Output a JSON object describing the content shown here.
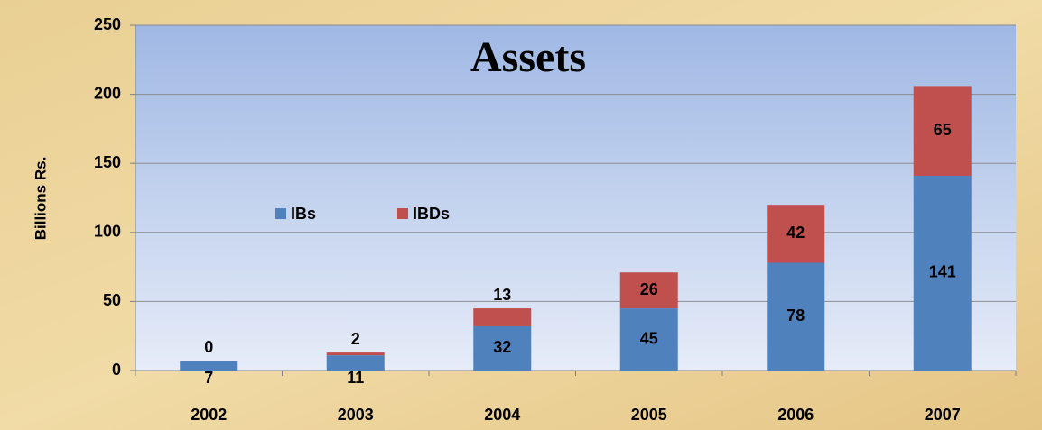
{
  "chart_data": {
    "type": "bar",
    "stacked": true,
    "title": "Assets",
    "y_label": "Billions Rs.",
    "categories": [
      "2002",
      "2003",
      "2004",
      "2005",
      "2006",
      "2007"
    ],
    "series": [
      {
        "name": "IBs",
        "color": "#4f81bd",
        "values": [
          7,
          11,
          32,
          45,
          78,
          141
        ]
      },
      {
        "name": "IBDs",
        "color": "#c0504d",
        "values": [
          0,
          2,
          13,
          26,
          42,
          65
        ]
      }
    ],
    "ylim": [
      0,
      250
    ],
    "yticks": [
      0,
      50,
      100,
      150,
      200,
      250
    ],
    "grid": true
  }
}
